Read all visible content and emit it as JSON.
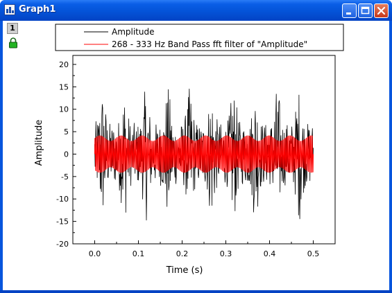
{
  "window": {
    "title": "Graph1",
    "app_icon": "graph-window-icon",
    "controls": [
      "minimize-icon",
      "maximize-icon",
      "close-icon"
    ],
    "layer_label": "1",
    "layer_lock_icon": "lock-icon"
  },
  "colors": {
    "titlebar": "#0453d8",
    "series_raw": "#000000",
    "series_filtered": "#ff0000",
    "close_button": "#c6381b"
  },
  "chart_data": {
    "type": "line",
    "xlabel": "Time (s)",
    "ylabel": "Amplitude",
    "xlim": [
      -0.05,
      0.55
    ],
    "ylim": [
      -20,
      22
    ],
    "x_ticks": [
      "0.0",
      "0.1",
      "0.2",
      "0.3",
      "0.4",
      "0.5"
    ],
    "y_ticks": [
      "-20",
      "-15",
      "-10",
      "-5",
      "0",
      "5",
      "10",
      "15",
      "20"
    ],
    "legend_position": "top",
    "grid": false,
    "series": [
      {
        "name": "Amplitude",
        "color": "#000000",
        "x_range": [
          0,
          0.5
        ],
        "approx_min": -16.5,
        "approx_max": 17.5,
        "periodic_peak_interval_s": 0.05
      },
      {
        "name": "268 - 333 Hz Band Pass fft filter of \"Amplitude\"",
        "color": "#ff0000",
        "x_range": [
          0,
          0.5
        ],
        "approx_min": -5,
        "approx_max": 4.5
      }
    ]
  }
}
